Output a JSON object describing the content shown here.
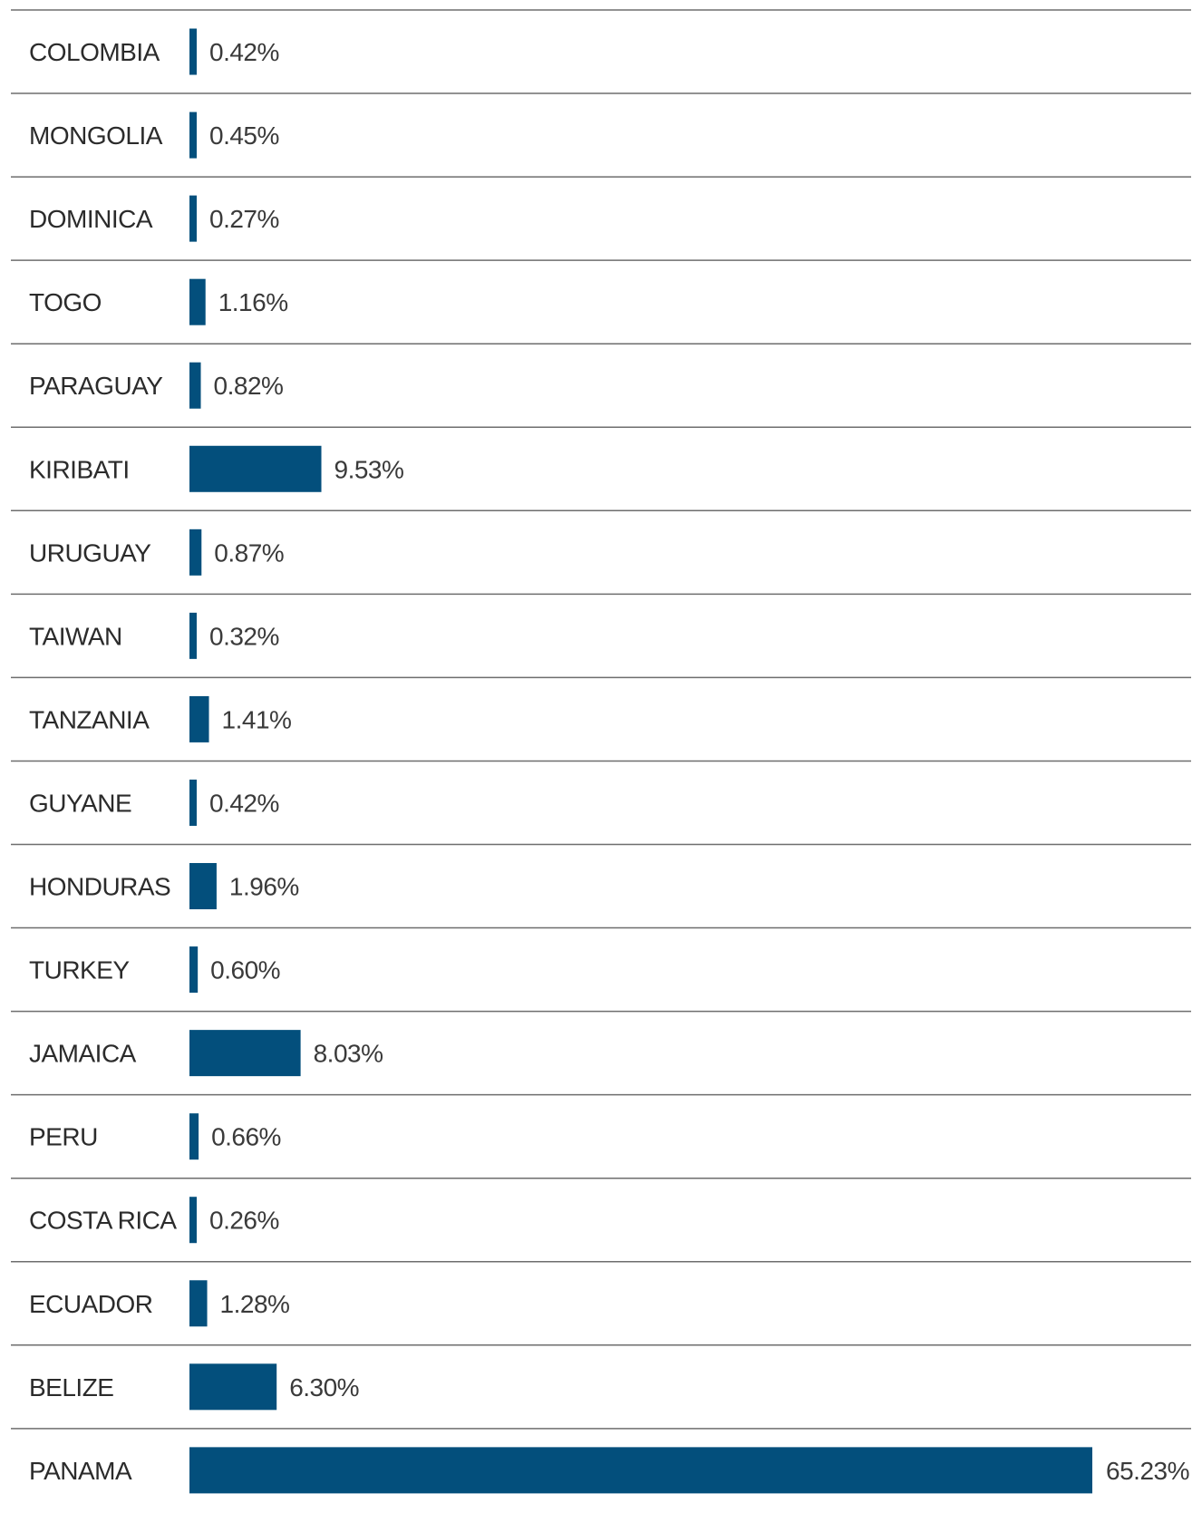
{
  "colors": {
    "bar": "#034f7c",
    "divider": "#6e6e6e",
    "text": "#2b2b2b"
  },
  "chart_data": {
    "type": "bar",
    "orientation": "horizontal",
    "categories": [
      "COLOMBIA",
      "MONGOLIA",
      "DOMINICA",
      "TOGO",
      "PARAGUAY",
      "KIRIBATI",
      "URUGUAY",
      "TAIWAN",
      "TANZANIA",
      "GUYANE",
      "HONDURAS",
      "TURKEY",
      "JAMAICA",
      "PERU",
      "COSTA RICA",
      "ECUADOR",
      "BELIZE",
      "PANAMA"
    ],
    "values": [
      0.42,
      0.45,
      0.27,
      1.16,
      0.82,
      9.53,
      0.87,
      0.32,
      1.41,
      0.42,
      1.96,
      0.6,
      8.03,
      0.66,
      0.26,
      1.28,
      6.3,
      65.23
    ],
    "value_labels": [
      "0.42%",
      "0.45%",
      "0.27%",
      "1.16%",
      "0.82%",
      "9.53%",
      "0.87%",
      "0.32%",
      "1.41%",
      "0.42%",
      "1.96%",
      "0.60%",
      "8.03%",
      "0.66%",
      "0.26%",
      "1.28%",
      "6.30%",
      "65.23%"
    ],
    "unit": "%",
    "grid": false,
    "legend": "none"
  }
}
